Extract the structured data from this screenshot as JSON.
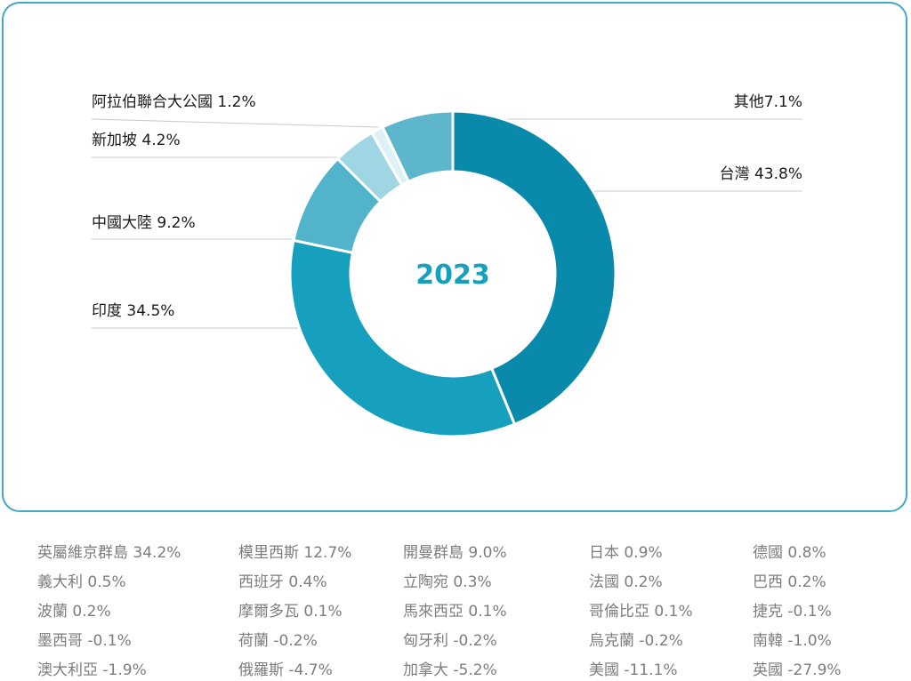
{
  "chart_data": {
    "type": "pie",
    "center_label": "2023",
    "slices": [
      {
        "name": "台灣",
        "value": 43.8,
        "label": "台灣 43.8%",
        "color": "#0a8aaa"
      },
      {
        "name": "印度",
        "value": 34.5,
        "label": "印度 34.5%",
        "color": "#17a0bd"
      },
      {
        "name": "中國大陸",
        "value": 9.2,
        "label": "中國大陸 9.2%",
        "color": "#52b4cb"
      },
      {
        "name": "新加坡",
        "value": 4.2,
        "label": "新加坡 4.2%",
        "color": "#a0d6e3"
      },
      {
        "name": "阿拉伯聯合大公國",
        "value": 1.2,
        "label": "阿拉伯聯合大公國 1.2%",
        "color": "#ddf1f6"
      },
      {
        "name": "其他",
        "value": 7.1,
        "label": "其他7.1%",
        "color": "#5db6cc"
      }
    ]
  },
  "others": [
    "英屬維京群島 34.2%",
    "模里西斯 12.7%",
    "開曼群島 9.0%",
    "日本 0.9%",
    "德國 0.8%",
    "義大利 0.5%",
    "西班牙 0.4%",
    "立陶宛 0.3%",
    "法國 0.2%",
    "巴西 0.2%",
    "波蘭 0.2%",
    "摩爾多瓦 0.1%",
    "馬來西亞 0.1%",
    "哥倫比亞 0.1%",
    "捷克 -0.1%",
    "墨西哥 -0.1%",
    "荷蘭 -0.2%",
    "匈牙利 -0.2%",
    "烏克蘭 -0.2%",
    "南韓 -1.0%",
    "澳大利亞 -1.9%",
    "俄羅斯 -4.7%",
    "加拿大 -5.2%",
    "美國 -11.1%",
    "英國 -27.9%"
  ],
  "colors": {
    "border": "#41a9c4",
    "center_text": "#17a0bd",
    "leader": "#c8c8c8",
    "footer_text": "#7d7d7d"
  }
}
